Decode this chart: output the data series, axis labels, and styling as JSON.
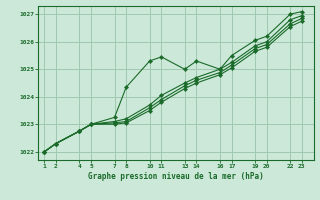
{
  "bg_color": "#cce8d8",
  "line_color": "#1a6b2a",
  "grid_color": "#a0c8b0",
  "title": "Graphe pression niveau de la mer (hPa)",
  "ylim": [
    1021.7,
    1027.3
  ],
  "yticks": [
    1022,
    1023,
    1024,
    1025,
    1026,
    1027
  ],
  "xtick_labels": [
    "1",
    "2",
    "4",
    "5",
    "7",
    "8",
    "10",
    "11",
    "13",
    "14",
    "16",
    "17",
    "19",
    "20",
    "22",
    "23"
  ],
  "x_values": [
    1,
    2,
    4,
    5,
    7,
    8,
    10,
    11,
    13,
    14,
    16,
    17,
    19,
    20,
    22,
    23
  ],
  "xlim": [
    0.5,
    24
  ],
  "line1": [
    1022.0,
    1022.3,
    1022.75,
    1023.0,
    1023.25,
    1024.35,
    1025.3,
    1025.45,
    1025.0,
    1025.3,
    1025.0,
    1025.5,
    1026.05,
    1026.2,
    1027.0,
    1027.1
  ],
  "line2": [
    1022.0,
    1022.3,
    1022.75,
    1023.0,
    1023.1,
    1023.2,
    1023.7,
    1024.05,
    1024.5,
    1024.7,
    1025.0,
    1025.25,
    1025.85,
    1026.0,
    1026.8,
    1026.95
  ],
  "line3": [
    1022.0,
    1022.3,
    1022.75,
    1023.0,
    1023.05,
    1023.1,
    1023.6,
    1023.9,
    1024.4,
    1024.6,
    1024.88,
    1025.15,
    1025.75,
    1025.9,
    1026.65,
    1026.85
  ],
  "line4": [
    1022.0,
    1022.3,
    1022.75,
    1023.0,
    1023.0,
    1023.05,
    1023.5,
    1023.8,
    1024.3,
    1024.5,
    1024.8,
    1025.05,
    1025.65,
    1025.8,
    1026.55,
    1026.75
  ]
}
